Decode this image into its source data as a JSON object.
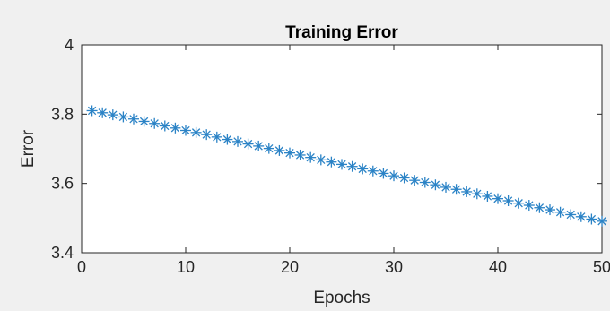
{
  "chart_data": {
    "type": "scatter",
    "title": "Training Error",
    "xlabel": "Epochs",
    "ylabel": "Error",
    "xlim": [
      0,
      50
    ],
    "ylim": [
      3.4,
      4.0
    ],
    "xticks": [
      "0",
      "10",
      "20",
      "30",
      "40",
      "50"
    ],
    "yticks": [
      "3.4",
      "3.6",
      "3.8",
      "4"
    ],
    "grid": false,
    "marker": "asterisk",
    "series": [
      {
        "color": "#2b83c6",
        "x": [
          1,
          2,
          3,
          4,
          5,
          6,
          7,
          8,
          9,
          10,
          11,
          12,
          13,
          14,
          15,
          16,
          17,
          18,
          19,
          20,
          21,
          22,
          23,
          24,
          25,
          26,
          27,
          28,
          29,
          30,
          31,
          32,
          33,
          34,
          35,
          36,
          37,
          38,
          39,
          40,
          41,
          42,
          43,
          44,
          45,
          46,
          47,
          48,
          49,
          50
        ],
        "y": [
          3.81,
          3.804,
          3.798,
          3.792,
          3.786,
          3.779,
          3.773,
          3.766,
          3.76,
          3.753,
          3.747,
          3.741,
          3.734,
          3.727,
          3.721,
          3.714,
          3.708,
          3.701,
          3.695,
          3.688,
          3.682,
          3.675,
          3.668,
          3.662,
          3.655,
          3.649,
          3.642,
          3.636,
          3.629,
          3.622,
          3.616,
          3.609,
          3.603,
          3.596,
          3.589,
          3.583,
          3.576,
          3.57,
          3.563,
          3.556,
          3.55,
          3.543,
          3.537,
          3.53,
          3.524,
          3.517,
          3.51,
          3.504,
          3.497,
          3.491
        ]
      }
    ]
  }
}
